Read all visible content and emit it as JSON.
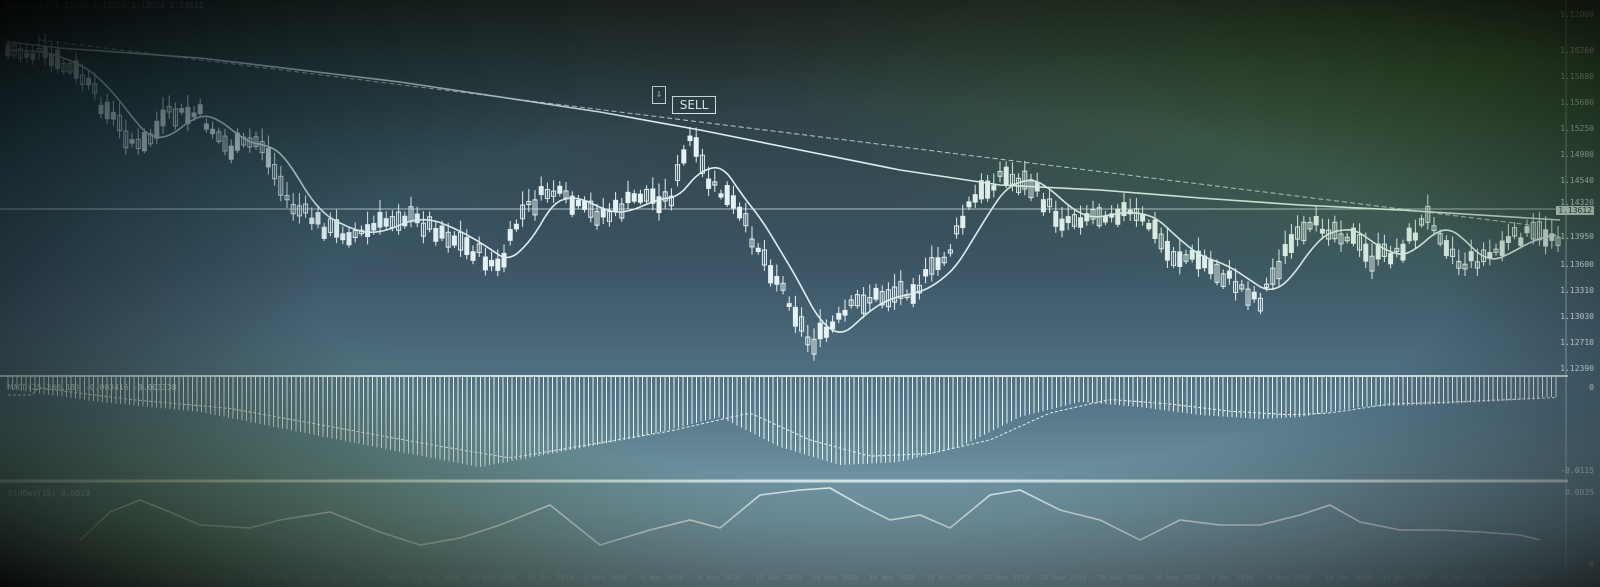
{
  "header": {
    "symbol_line": "EURUSD,H4 1.13646 1.13658 1.13528 1.13612"
  },
  "trade": {
    "sell_label": "SELL",
    "icon": "order-arrow-icon"
  },
  "price_axis": {
    "labels": [
      "1.16260",
      "1.15880",
      "1.15600",
      "1.15250",
      "1.14900",
      "1.14540",
      "1.14320",
      "1.13950",
      "1.13600",
      "1.13310",
      "1.13030",
      "1.12710",
      "1.12390",
      "1.12000"
    ],
    "current": "1.13612"
  },
  "macd_panel": {
    "label": "MACD(25,200,18) -0.003416 -0.003338",
    "axis_top": "0",
    "axis_bottom": "-0.0115"
  },
  "stddev_panel": {
    "label": "StdDev(15) 0.0019",
    "axis_top": "0.0035",
    "axis_bottom": "0"
  },
  "date_axis": {
    "labels": [
      "4 Oct 2018",
      "9 Oct 2018",
      "11 Oct 2018",
      "15 Oct 2018",
      "17 Oct 2018",
      "19 Oct 2018",
      "23 Oct 2018",
      "25 Oct 2018",
      "29 Oct 2018",
      "31 Oct 2018",
      "2 Nov 2018",
      "6 Nov 2018",
      "8 Nov 2018",
      "12 Nov 2018",
      "14 Nov 2018",
      "16 Nov 2018",
      "20 Nov 2018",
      "22 Nov 2018",
      "26 Nov 2018",
      "28 Nov 2018",
      "30 Nov 2018",
      "4 Dec 2018",
      "6 Dec 2018",
      "10 Dec 2018",
      "12 Dec 2018",
      "14 Dec 2018",
      "18 Dec 2018"
    ]
  },
  "colors": {
    "line": "#dfeef0",
    "candle": "#e6f2f3",
    "grid": "#cfe2e4"
  }
}
